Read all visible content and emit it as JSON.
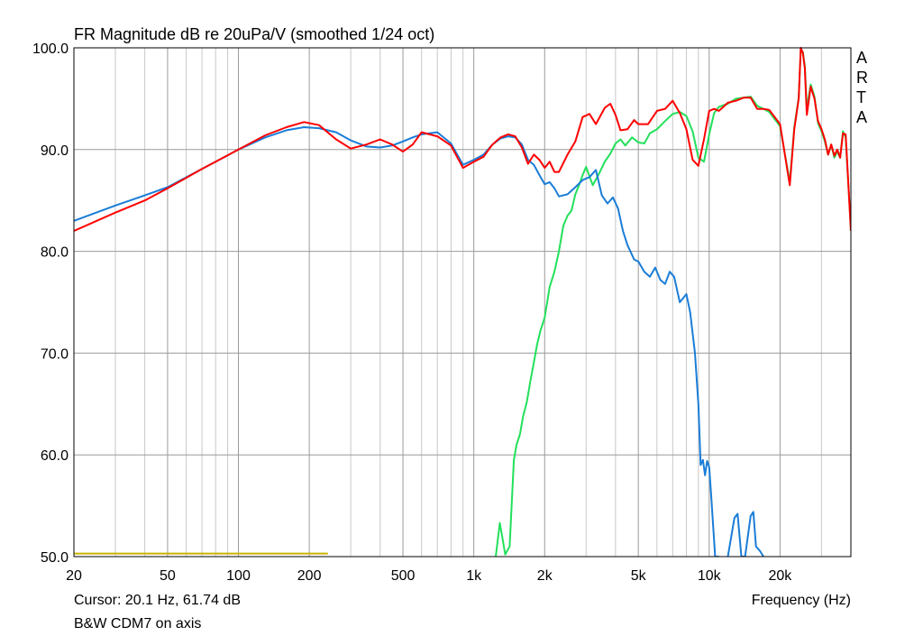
{
  "chart_data": {
    "type": "line",
    "title": "FR Magnitude dB re 20uPa/V (smoothed 1/24 oct)",
    "brand": [
      "A",
      "R",
      "T",
      "A"
    ],
    "xlabel": "Frequency (Hz)",
    "x_scale": "log",
    "xlim": [
      20,
      40000
    ],
    "ylim": [
      50,
      100
    ],
    "grid": true,
    "y_ticks": [
      {
        "value": 100,
        "label": "100.0"
      },
      {
        "value": 90,
        "label": "90.0"
      },
      {
        "value": 80,
        "label": "80.0"
      },
      {
        "value": 70,
        "label": "70.0"
      },
      {
        "value": 60,
        "label": "60.0"
      },
      {
        "value": 50,
        "label": "50.0"
      }
    ],
    "x_ticks": [
      {
        "value": 20,
        "label": "20"
      },
      {
        "value": 50,
        "label": "50"
      },
      {
        "value": 100,
        "label": "100"
      },
      {
        "value": 200,
        "label": "200"
      },
      {
        "value": 500,
        "label": "500"
      },
      {
        "value": 1000,
        "label": "1k"
      },
      {
        "value": 2000,
        "label": "2k"
      },
      {
        "value": 5000,
        "label": "5k"
      },
      {
        "value": 10000,
        "label": "10k"
      },
      {
        "value": 20000,
        "label": "20k"
      }
    ],
    "cursor_text": "Cursor: 20.1 Hz, 61.74 dB",
    "caption": "B&W CDM7 on axis",
    "series": [
      {
        "color": "#ff0000",
        "x": [
          20,
          30,
          40,
          50,
          70,
          100,
          130,
          160,
          190,
          220,
          260,
          300,
          350,
          400,
          450,
          500,
          550,
          600,
          700,
          800,
          900,
          1000,
          1100,
          1200,
          1300,
          1400,
          1500,
          1600,
          1700,
          1800,
          1900,
          2000,
          2100,
          2200,
          2300,
          2500,
          2700,
          2900,
          3100,
          3300,
          3600,
          3800,
          4000,
          4200,
          4500,
          4800,
          5000,
          5500,
          6000,
          6500,
          7000,
          7500,
          8000,
          8500,
          9000,
          9500,
          10000,
          10500,
          11000,
          12000,
          13000,
          14000,
          15000,
          16000,
          17000,
          18000,
          20000,
          22000,
          23000,
          24000,
          24500,
          25000,
          25500,
          26000,
          27000,
          28000,
          29000,
          30000,
          31000,
          32000,
          33000,
          34000,
          35000,
          36000,
          37000,
          38000,
          40000
        ],
        "y": [
          82,
          83.8,
          85,
          86.2,
          88.1,
          90,
          91.4,
          92.2,
          92.7,
          92.4,
          91,
          90.1,
          90.5,
          91,
          90.5,
          89.8,
          90.5,
          91.7,
          91.3,
          90.4,
          88.2,
          88.8,
          89.3,
          90.5,
          91.2,
          91.5,
          91.3,
          90.2,
          88.6,
          89.5,
          89,
          88.2,
          88.8,
          87.8,
          87.8,
          89.5,
          90.8,
          93.2,
          93.5,
          92.5,
          94.1,
          94.5,
          93.4,
          91.9,
          92,
          92.9,
          92.5,
          92.5,
          93.8,
          94,
          94.8,
          93.6,
          92,
          89,
          88.4,
          91,
          93.8,
          94,
          93.8,
          94.6,
          94.8,
          95.1,
          95.1,
          94,
          94,
          93.9,
          92.5,
          86.5,
          92,
          95,
          100,
          99.5,
          98,
          93.4,
          96.2,
          95,
          92.8,
          92,
          91,
          89.5,
          90.5,
          89.4,
          90,
          89.2,
          91.6,
          91.5,
          82
        ]
      },
      {
        "color": "#1a7dd7",
        "x": [
          20,
          30,
          40,
          50,
          70,
          100,
          130,
          160,
          190,
          220,
          260,
          300,
          350,
          400,
          450,
          500,
          550,
          600,
          700,
          800,
          900,
          1000,
          1100,
          1200,
          1300,
          1400,
          1500,
          1600,
          1700,
          1800,
          1900,
          2000,
          2100,
          2200,
          2300,
          2500,
          2700,
          2900,
          3100,
          3300,
          3500,
          3700,
          3900,
          4100,
          4300,
          4500,
          4800,
          5000,
          5300,
          5600,
          5900,
          6200,
          6500,
          6800,
          7100,
          7500,
          8000,
          8300,
          8700,
          9000,
          9200,
          9400,
          9600,
          9800,
          10000,
          10200,
          10400,
          10600,
          10800,
          11000
        ],
        "y": [
          83,
          84.5,
          85.5,
          86.3,
          88.1,
          90,
          91.2,
          91.9,
          92.2,
          92.1,
          91.7,
          90.9,
          90.3,
          90.2,
          90.4,
          90.8,
          91.2,
          91.5,
          91.7,
          90.6,
          88.5,
          89,
          89.5,
          90.5,
          91.1,
          91.3,
          91.2,
          90.5,
          89,
          88.5,
          87.5,
          86.6,
          86.8,
          86.2,
          85.4,
          85.6,
          86.3,
          87,
          87.3,
          88,
          85.5,
          84.7,
          85.3,
          84.2,
          82,
          80.6,
          79.2,
          79,
          78,
          77.5,
          78.4,
          77.2,
          76.8,
          78,
          77.5,
          75,
          75.8,
          74,
          70,
          65,
          59,
          59.5,
          58,
          59.4,
          58.8,
          56,
          53,
          50,
          50,
          50
        ]
      },
      {
        "color": "#1a7dd7",
        "x": [
          12000,
          12800,
          13200,
          13700,
          14200,
          15000,
          15400,
          15800,
          16500,
          17000
        ],
        "y": [
          50,
          53.8,
          54.2,
          50,
          50,
          54,
          54.4,
          51,
          50.5,
          50
        ]
      },
      {
        "color": "#22e05a",
        "x": [
          1240,
          1290,
          1320,
          1360,
          1420,
          1480,
          1520,
          1570,
          1620,
          1680,
          1740,
          1800,
          1860,
          1920,
          2000,
          2100,
          2200,
          2300,
          2400,
          2500,
          2600,
          2700,
          2800,
          2900,
          3000,
          3200,
          3400,
          3600,
          3800,
          4000,
          4200,
          4400,
          4700,
          5000,
          5300,
          5600,
          6000,
          6500,
          7000,
          7500,
          8000,
          8500,
          9000,
          9500,
          10000,
          10500,
          11000,
          12000,
          13000,
          14000,
          15000,
          16000,
          17000,
          18000,
          20000,
          22000,
          23000,
          24000,
          24500,
          25000,
          25500,
          26000,
          27000,
          28000,
          29000,
          30000,
          31000,
          32000,
          33000,
          34000,
          35000,
          36000,
          37000,
          38000,
          40000
        ],
        "y": [
          50,
          53.3,
          52,
          50.2,
          51,
          59.5,
          61,
          62,
          63.8,
          65.2,
          67.3,
          69.1,
          70.9,
          72.2,
          73.5,
          76.5,
          78,
          80,
          82.5,
          83.5,
          84,
          85.6,
          86.5,
          87.5,
          88.3,
          86.5,
          87.6,
          88.8,
          89.6,
          90.6,
          91,
          90.4,
          91.2,
          90.7,
          90.6,
          91.6,
          92,
          92.8,
          93.5,
          93.7,
          93.3,
          91.8,
          89.2,
          88.8,
          91.5,
          93.6,
          94.2,
          94.5,
          95,
          95.1,
          95.2,
          94.3,
          94,
          93.7,
          92.3,
          86.8,
          92.2,
          95.1,
          99.8,
          99.6,
          98.2,
          94,
          96.4,
          95.2,
          92.6,
          91.8,
          90.8,
          89.5,
          90.5,
          89.2,
          89.8,
          89.2,
          91.8,
          91.2,
          82.2
        ]
      },
      {
        "color": "#c8b400",
        "x": [
          20,
          240
        ],
        "y": [
          50.3,
          50.3
        ]
      }
    ]
  }
}
